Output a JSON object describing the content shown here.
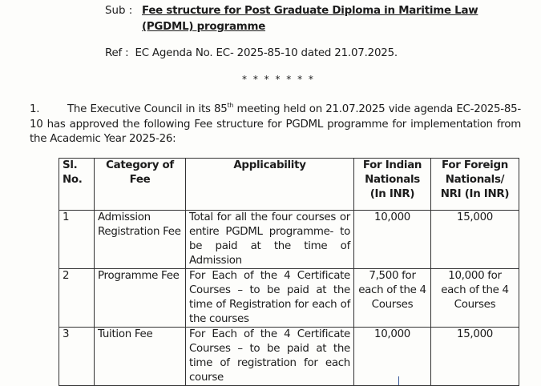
{
  "subject": {
    "label": "Sub :",
    "title": "Fee structure for Post Graduate Diploma in Maritime Law (PGDML) programme"
  },
  "reference": {
    "label": "Ref :",
    "value": "EC Agenda No. EC- 2025-85-10 dated 21.07.2025."
  },
  "separator": "* * * * * * *",
  "paragraph": {
    "number": "1.",
    "text_before": "The Executive Council in its 85",
    "superscript": "th",
    "text_after": " meeting held on 21.07.2025 vide agenda EC-2025-85-10 has approved the following Fee structure for PGDML programme for implementation from the Academic Year 2025-26:"
  },
  "table": {
    "headers": [
      "Sl. No.",
      "Category of Fee",
      "Applicability",
      "For Indian Nationals (In INR)",
      "For Foreign Nationals/ NRI (In INR)"
    ],
    "rows": [
      [
        "1",
        "Admission Registration Fee",
        "Total for all the four courses or entire PGDML programme- to be paid at the time of Admission",
        "10,000",
        "15,000"
      ],
      [
        "2",
        "Programme Fee",
        "For Each of the 4 Certificate Courses – to be paid at the time of Registration for each of the courses",
        "7,500 for each of the 4 Courses",
        "10,000 for each of the 4 Courses"
      ],
      [
        "3",
        "Tuition Fee",
        "For Each of the 4 Certificate Courses – to be paid at the time of registration for each course",
        "10,000",
        "15,000"
      ]
    ]
  }
}
